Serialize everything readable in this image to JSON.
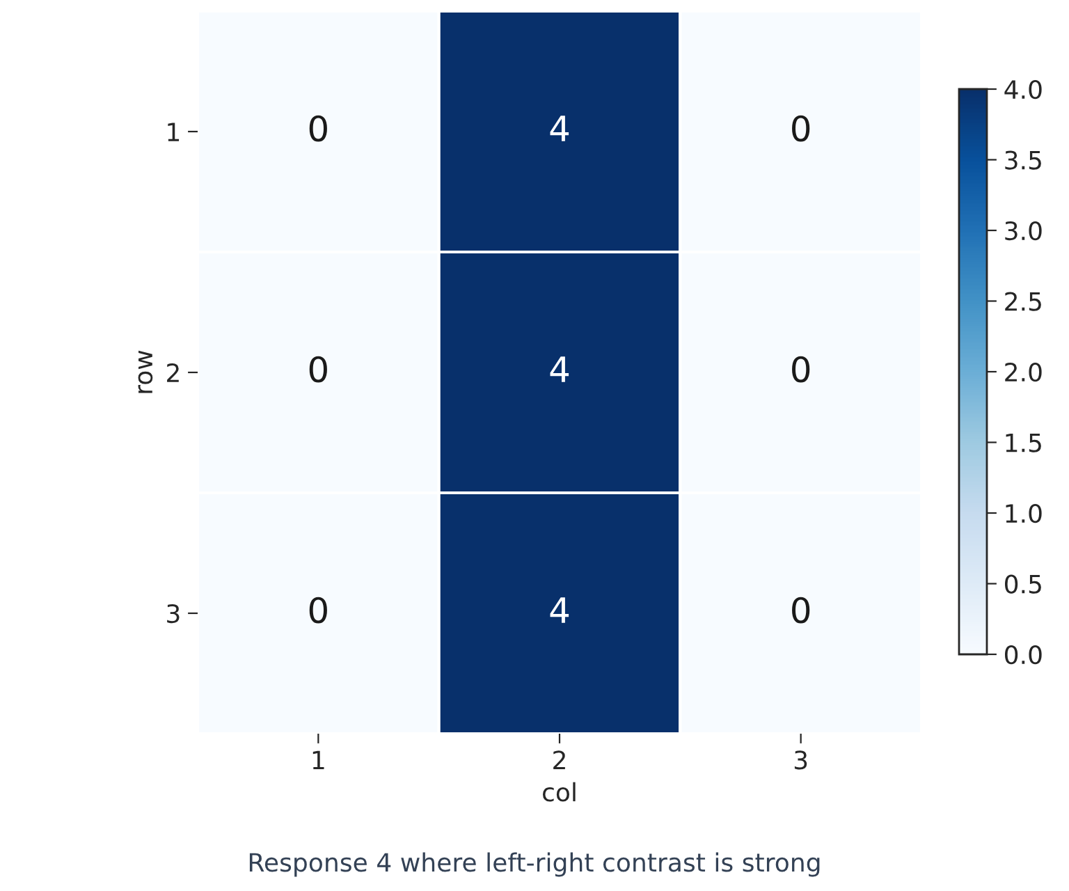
{
  "chart_data": {
    "type": "heatmap",
    "xlabel": "col",
    "ylabel": "row",
    "categories": [
      "1",
      "2",
      "3"
    ],
    "y_categories": [
      "1",
      "2",
      "3"
    ],
    "cells": [
      [
        0,
        4,
        0
      ],
      [
        0,
        4,
        0
      ],
      [
        0,
        4,
        0
      ]
    ],
    "clim": [
      0,
      4
    ],
    "cticks": [
      {
        "value": 0,
        "label": "0.0"
      },
      0.5,
      {
        "value": 1,
        "label": "1.0"
      },
      1.5,
      {
        "value": 2,
        "label": "2.0"
      },
      2.5,
      {
        "value": 3,
        "label": "3.0"
      },
      3.5,
      {
        "value": 4,
        "label": "4.0"
      }
    ],
    "data_labels": true,
    "annotations": [
      "Response 4 where left-right contrast is strong"
    ]
  }
}
